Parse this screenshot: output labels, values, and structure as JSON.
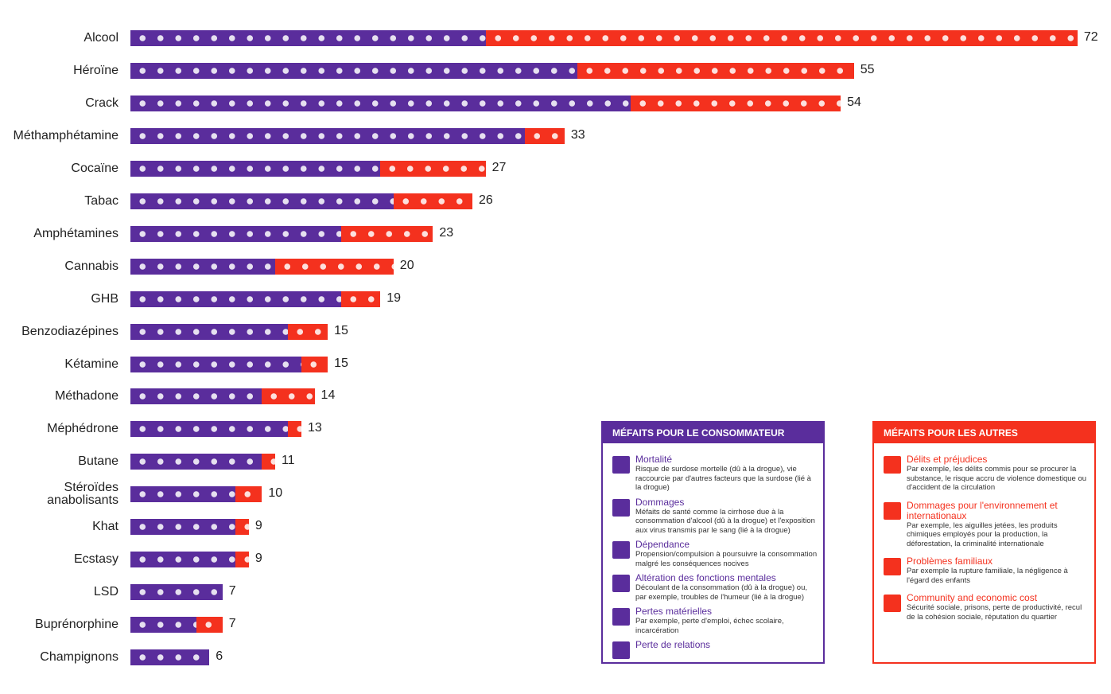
{
  "chart_data": {
    "type": "stacked-bar",
    "categories": [
      "Alcool",
      "Héroïne",
      "Crack",
      "Méthamphétamine",
      "Cocaïne",
      "Tabac",
      "Amphétamines",
      "Cannabis",
      "GHB",
      "Benzodiazépines",
      "Kétamine",
      "Méthadone",
      "Méphédrone",
      "Butane",
      "Stéroïdes anabolisants",
      "Khat",
      "Ecstasy",
      "LSD",
      "Buprénorphine",
      "Champignons"
    ],
    "totals": [
      72,
      55,
      54,
      33,
      27,
      26,
      23,
      20,
      19,
      15,
      15,
      14,
      13,
      11,
      10,
      9,
      9,
      7,
      7,
      6
    ],
    "series": [
      {
        "name": "MÉFAITS POUR LE CONSOMMATEUR",
        "color": "#5a2d9c",
        "values": [
          27,
          34,
          38,
          30,
          19,
          20,
          16,
          11,
          16,
          12,
          13,
          10,
          12,
          10,
          8,
          8,
          8,
          7,
          5,
          6
        ],
        "items": [
          {
            "name": "Mortalité",
            "description": "Risque de surdose mortelle (dû à la drogue), vie raccourcie par d'autres facteurs que la surdose (lié à la drogue)"
          },
          {
            "name": "Dommages",
            "description": "Méfaits de santé comme la cirrhose due à la consommation d'alcool (dû à la drogue) et l'exposition aux virus transmis par le sang (lié à la drogue)"
          },
          {
            "name": "Dépendance",
            "description": "Propension/compulsion à poursuivre la consommation malgré les conséquences nocives"
          },
          {
            "name": "Altération des fonctions mentales",
            "description": "Découlant de la consommation (dû à la drogue) ou, par exemple, troubles de l'humeur (lié à la drogue)"
          },
          {
            "name": "Pertes matérielles",
            "description": "Par exemple, perte d'emploi, échec scolaire, incarcération"
          },
          {
            "name": "Perte de relations"
          }
        ]
      },
      {
        "name": "MÉFAITS POUR LES AUTRES",
        "color": "#f4311e",
        "values": [
          45,
          21,
          16,
          3,
          8,
          6,
          7,
          9,
          3,
          3,
          2,
          4,
          1,
          1,
          2,
          1,
          1,
          0,
          2,
          0
        ],
        "items": [
          {
            "name": "Délits et préjudices",
            "description": "Par exemple, les délits commis pour se procurer la substance, le risque accru de violence domestique ou d'accident de la circulation"
          },
          {
            "name": "Dommages pour l'environnement et internationaux",
            "description": "Par exemple, les aiguilles jetées, les produits chimiques employés pour la production, la déforestation, la criminalité internationale"
          },
          {
            "name": "Problèmes familiaux",
            "description": "Par exemple la rupture familiale, la négligence à l'égard des enfants"
          },
          {
            "name": "Community and economic cost",
            "description": "Sécurité sociale, prisons, perte de productivité, recul de la cohésion sociale, réputation du quartier"
          }
        ]
      }
    ]
  }
}
